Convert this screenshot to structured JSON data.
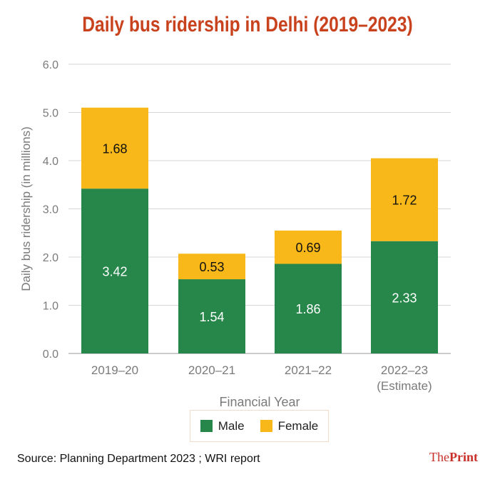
{
  "colors": {
    "title": "#c8421e",
    "male": "#27874a",
    "female": "#f8b819",
    "axis_text": "#7a7a7a",
    "grid": "#d6d6d6",
    "brand": "#c8302a"
  },
  "chart_data": {
    "type": "bar",
    "stacked": true,
    "title": "Daily bus ridership in Delhi (2019–2023)",
    "xlabel": "Financial Year",
    "ylabel": "Daily bus ridership (in millions)",
    "ylim": [
      0,
      6
    ],
    "yticks": [
      "0.0",
      "1.0",
      "2.0",
      "3.0",
      "4.0",
      "5.0",
      "6.0"
    ],
    "grid": true,
    "categories": [
      [
        "2019–20"
      ],
      [
        "2020–21"
      ],
      [
        "2021–22"
      ],
      [
        "2022–23",
        "(Estimate)"
      ]
    ],
    "series": [
      {
        "name": "Male",
        "values": [
          3.42,
          1.54,
          1.86,
          2.33
        ],
        "labels": [
          "3.42",
          "1.54",
          "1.86",
          "2.33"
        ]
      },
      {
        "name": "Female",
        "values": [
          1.68,
          0.53,
          0.69,
          1.72
        ],
        "labels": [
          "1.68",
          "0.53",
          "0.69",
          "1.72"
        ]
      }
    ],
    "legend": {
      "position": "bottom-center",
      "entries": [
        "Male",
        "Female"
      ]
    }
  },
  "source": "Source: Planning Department 2023 ; WRI report",
  "brand": {
    "part1": "The",
    "part2": "Print"
  }
}
